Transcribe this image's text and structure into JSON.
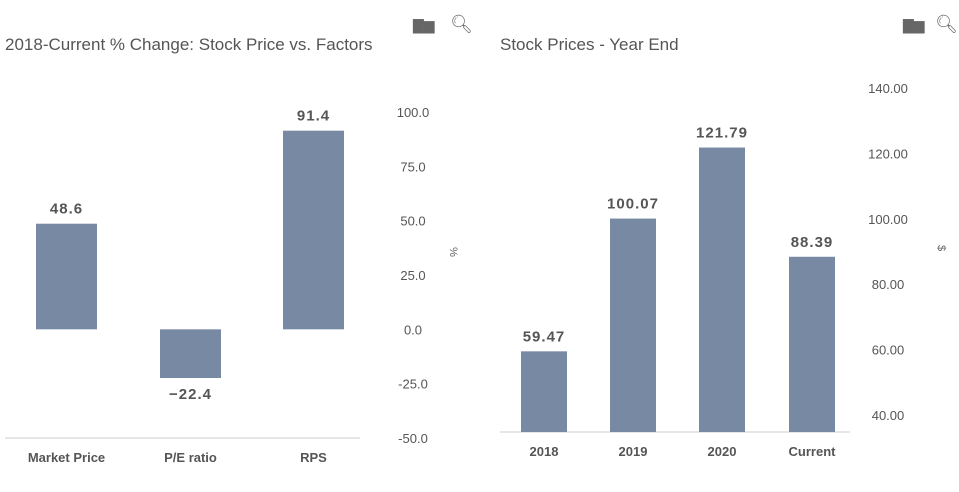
{
  "chart_data": [
    {
      "type": "bar",
      "title": "2018-Current % Change: Stock Price vs. Factors",
      "categories": [
        "Market Price",
        "P/E ratio",
        "RPS"
      ],
      "values": [
        48.6,
        -22.4,
        91.4
      ],
      "value_labels": [
        "48.6",
        "−22.4",
        "91.4"
      ],
      "ylabel": "%",
      "ylim": [
        -50,
        100
      ],
      "yticks": [
        "100.0",
        "75.0",
        "50.0",
        "25.0",
        "0.0",
        "-25.0",
        "-50.0"
      ],
      "ytick_values": [
        100,
        75,
        50,
        25,
        0,
        -25,
        -50
      ],
      "grid": false,
      "y_axis_side": "right"
    },
    {
      "type": "bar",
      "title": "Stock Prices - Year End",
      "categories": [
        "2018",
        "2019",
        "2020",
        "Current"
      ],
      "values": [
        59.47,
        100.07,
        121.79,
        88.39
      ],
      "value_labels": [
        "59.47",
        "100.07",
        "121.79",
        "88.39"
      ],
      "ylabel": "$",
      "ylim": [
        35,
        140
      ],
      "yticks": [
        "140.00",
        "120.00",
        "100.00",
        "80.00",
        "60.00",
        "40.00"
      ],
      "ytick_values": [
        140,
        120,
        100,
        80,
        60,
        40
      ],
      "grid": false,
      "y_axis_side": "right"
    }
  ],
  "colors": {
    "bar": "#7889a4",
    "text": "#555555",
    "axis": "#cccccc"
  },
  "icons": [
    "bar-chart-icon",
    "search-icon"
  ]
}
